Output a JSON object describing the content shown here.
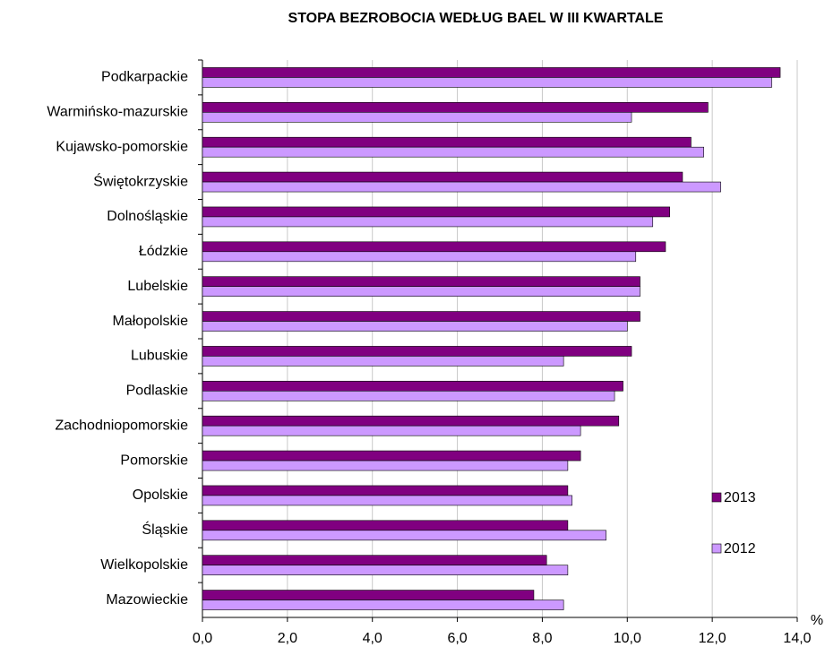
{
  "chart_data": {
    "type": "bar",
    "orientation": "horizontal",
    "title": "STOPA BEZROBOCIA WEDŁUG BAEL W III KWARTALE",
    "x_label": "%",
    "categories": [
      "Podkarpackie",
      "Warmińsko-mazurskie",
      "Kujawsko-pomorskie",
      "Świętokrzyskie",
      "Dolnośląskie",
      "Łódzkie",
      "Lubelskie",
      "Małopolskie",
      "Lubuskie",
      "Podlaskie",
      "Zachodniopomorskie",
      "Pomorskie",
      "Opolskie",
      "Śląskie",
      "Wielkopolskie",
      "Mazowieckie"
    ],
    "series": [
      {
        "name": "2013",
        "color": "#800080",
        "values": [
          13.6,
          11.9,
          11.5,
          11.3,
          11.0,
          10.9,
          10.3,
          10.3,
          10.1,
          9.9,
          9.8,
          8.9,
          8.6,
          8.6,
          8.1,
          7.8
        ]
      },
      {
        "name": "2012",
        "color": "#cc99ff",
        "values": [
          13.4,
          10.1,
          11.8,
          12.2,
          10.6,
          10.2,
          10.3,
          10.0,
          8.5,
          9.7,
          8.9,
          8.6,
          8.7,
          9.5,
          8.6,
          8.5
        ]
      }
    ],
    "xlim": [
      0,
      14
    ],
    "xticks": [
      {
        "value": 0,
        "label": "0,0"
      },
      {
        "value": 2,
        "label": "2,0"
      },
      {
        "value": 4,
        "label": "4,0"
      },
      {
        "value": 6,
        "label": "6,0"
      },
      {
        "value": 8,
        "label": "8,0"
      },
      {
        "value": 10,
        "label": "10,0"
      },
      {
        "value": 12,
        "label": "12,0"
      },
      {
        "value": 14,
        "label": "14,0"
      }
    ],
    "grid": true,
    "legend": "lower right"
  }
}
